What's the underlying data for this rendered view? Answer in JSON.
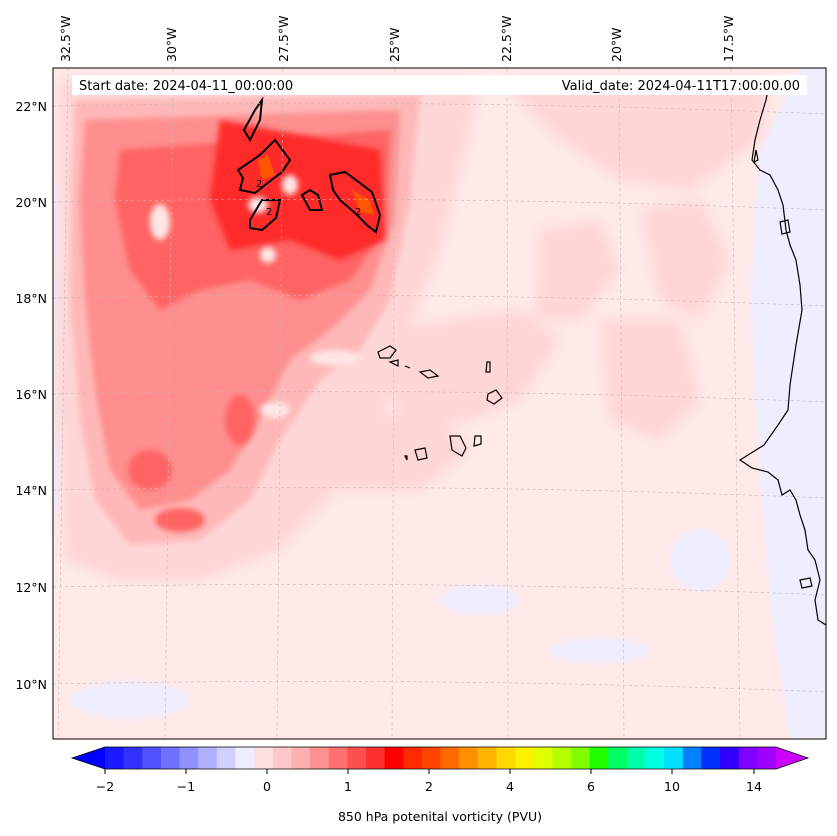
{
  "map": {
    "start_label": "Start date: 2024-04-11_00:00:00",
    "valid_label": "Valid_date: 2024-04-11T17:00:00.00",
    "lon_ticks": [
      "32.5°W",
      "30°W",
      "27.5°W",
      "25°W",
      "22.5°W",
      "20°W",
      "17.5°W"
    ],
    "lat_ticks": [
      "22°N",
      "20°N",
      "18°N",
      "16°N",
      "14°N",
      "12°N",
      "10°N"
    ],
    "contour_label": "2",
    "colors": {
      "background_low": "#ffe9e9",
      "pv_0_25": "#ffd6d6",
      "pv_0_5": "#ffb8b8",
      "pv_1": "#ff8e8e",
      "pv_1_5": "#ff6464",
      "pv_2": "#ff2a2a",
      "pv_3": "#ff5500",
      "negative": "#eeeeff",
      "coast": "#000000"
    }
  },
  "colorbar": {
    "label": "850 hPa potenital vorticity (PVU)",
    "ticks": [
      "−2",
      "−1",
      "0",
      "1",
      "2",
      "4",
      "6",
      "10",
      "14"
    ],
    "colors": [
      "#1a1aff",
      "#3232ff",
      "#5050ff",
      "#7070ff",
      "#9090ff",
      "#b0b0ff",
      "#d0d0ff",
      "#eeeeff",
      "#ffe0e0",
      "#ffc8c8",
      "#ffb0b0",
      "#ff9090",
      "#ff7070",
      "#ff5050",
      "#ff3030",
      "#ff0000",
      "#ff2a00",
      "#ff4500",
      "#ff6a00",
      "#ff9000",
      "#ffb400",
      "#ffd800",
      "#fff000",
      "#e0ff00",
      "#b4ff00",
      "#80ff00",
      "#20ff00",
      "#00ff60",
      "#00ffaa",
      "#00ffe0",
      "#00e0ff",
      "#0080ff",
      "#0030ff",
      "#3000ff",
      "#8000ff",
      "#a000ff"
    ],
    "min_color": "#0000ff",
    "max_color": "#cc00ff"
  }
}
